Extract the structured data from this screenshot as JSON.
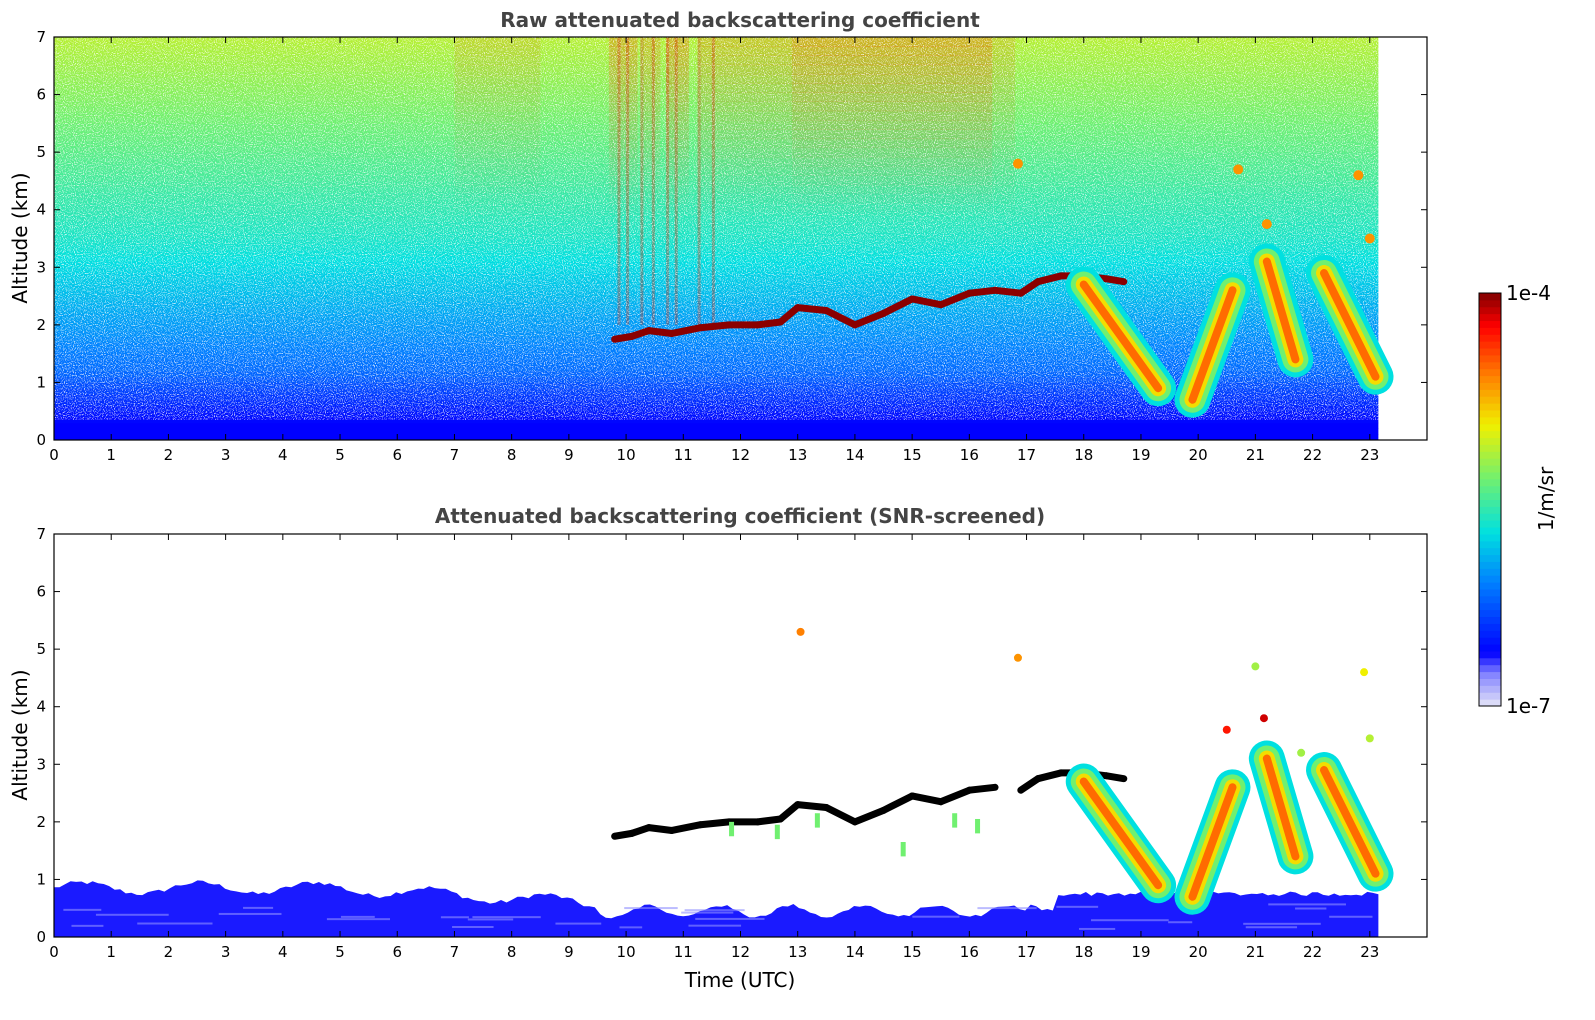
{
  "chart_data": [
    {
      "type": "heatmap",
      "title": "Raw attenuated backscattering coefficient",
      "xlabel": "",
      "ylabel": "Altitude (km)",
      "xlim": [
        0,
        24
      ],
      "ylim": [
        0,
        7
      ],
      "xticks": [
        "0",
        "1",
        "2",
        "3",
        "4",
        "5",
        "6",
        "7",
        "8",
        "9",
        "10",
        "11",
        "12",
        "13",
        "14",
        "15",
        "16",
        "17",
        "18",
        "19",
        "20",
        "21",
        "22",
        "23"
      ],
      "yticks": [
        "0",
        "1",
        "2",
        "3",
        "4",
        "5",
        "6",
        "7"
      ],
      "data_end_time": 23.15,
      "features": {
        "cloud_layer": [
          [
            9.8,
            1.75
          ],
          [
            10.1,
            1.8
          ],
          [
            10.4,
            1.9
          ],
          [
            10.8,
            1.85
          ],
          [
            11.3,
            1.95
          ],
          [
            11.8,
            2.0
          ],
          [
            12.3,
            2.0
          ],
          [
            12.7,
            2.05
          ],
          [
            13.0,
            2.3
          ],
          [
            13.5,
            2.25
          ],
          [
            14.0,
            2.0
          ],
          [
            14.5,
            2.2
          ],
          [
            15.0,
            2.45
          ],
          [
            15.5,
            2.35
          ],
          [
            16.0,
            2.55
          ],
          [
            16.45,
            2.6
          ],
          [
            16.9,
            2.55
          ],
          [
            17.2,
            2.75
          ],
          [
            17.6,
            2.85
          ],
          [
            18.0,
            2.85
          ],
          [
            18.4,
            2.8
          ],
          [
            18.7,
            2.75
          ]
        ],
        "descending_plumes": [
          {
            "top": [
              18.0,
              2.7
            ],
            "bottom": [
              19.3,
              0.9
            ]
          },
          {
            "top": [
              20.6,
              2.6
            ],
            "bottom": [
              19.9,
              0.7
            ]
          },
          {
            "top": [
              21.2,
              3.1
            ],
            "bottom": [
              21.7,
              1.4
            ]
          },
          {
            "top": [
              22.2,
              2.9
            ],
            "bottom": [
              23.1,
              1.1
            ]
          }
        ]
      }
    },
    {
      "type": "heatmap",
      "title": "Attenuated backscattering coefficient (SNR-screened)",
      "xlabel": "Time (UTC)",
      "ylabel": "Altitude (km)",
      "xlim": [
        0,
        24
      ],
      "ylim": [
        0,
        7
      ],
      "xticks": [
        "0",
        "1",
        "2",
        "3",
        "4",
        "5",
        "6",
        "7",
        "8",
        "9",
        "10",
        "11",
        "12",
        "13",
        "14",
        "15",
        "16",
        "17",
        "18",
        "19",
        "20",
        "21",
        "22",
        "23"
      ],
      "yticks": [
        "0",
        "1",
        "2",
        "3",
        "4",
        "5",
        "6",
        "7"
      ],
      "data_end_time": 23.15
    }
  ],
  "colorbar": {
    "max_label": "1e-4",
    "min_label": "1e-7",
    "unit_label": "1/m/sr",
    "scale": "log",
    "colormap": "jet",
    "range": [
      1e-07,
      0.0001
    ]
  }
}
